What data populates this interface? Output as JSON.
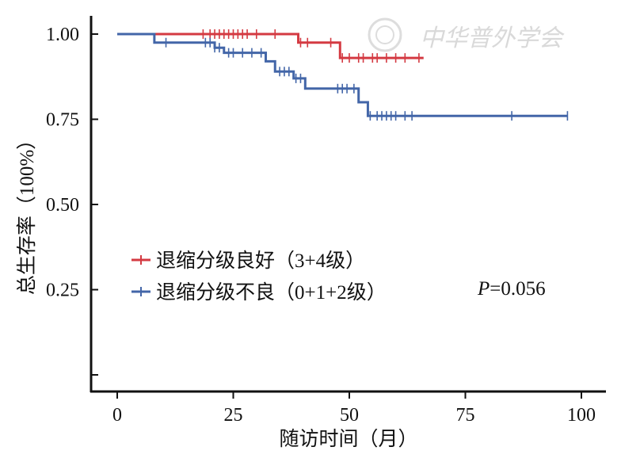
{
  "chart_data": {
    "type": "line",
    "step": true,
    "ylabel": "总生存率（100%）",
    "xlabel": "随访时间（月）",
    "xlim": [
      -5,
      105
    ],
    "ylim": [
      -0.06,
      1.06
    ],
    "xticks": [
      0,
      25,
      50,
      75,
      100
    ],
    "yticks": [
      0.25,
      0.5,
      0.75,
      1.0
    ],
    "ytick_labels": [
      "0.25",
      "0.50",
      "0.75",
      "1.00"
    ],
    "extra_ytick": 0.0,
    "legend_position": "center-left",
    "annotation": {
      "label": "P",
      "value": "=0.056"
    },
    "watermark": "中华普外学会",
    "series": [
      {
        "name": "退缩分级良好（3+4级）",
        "color": "#d43a42",
        "steps": [
          [
            0,
            1.0
          ],
          [
            39,
            0.975
          ],
          [
            48,
            0.93
          ],
          [
            66,
            0.93
          ]
        ],
        "censored": [
          [
            18.5,
            1.0
          ],
          [
            20,
            1.0
          ],
          [
            21,
            1.0
          ],
          [
            22,
            1.0
          ],
          [
            23,
            1.0
          ],
          [
            24,
            1.0
          ],
          [
            25,
            1.0
          ],
          [
            26,
            1.0
          ],
          [
            27,
            1.0
          ],
          [
            28,
            1.0
          ],
          [
            30,
            1.0
          ],
          [
            34,
            1.0
          ],
          [
            39.5,
            0.975
          ],
          [
            41,
            0.975
          ],
          [
            46,
            0.975
          ],
          [
            48.5,
            0.93
          ],
          [
            50,
            0.93
          ],
          [
            52,
            0.93
          ],
          [
            53,
            0.93
          ],
          [
            55,
            0.93
          ],
          [
            56,
            0.93
          ],
          [
            58,
            0.93
          ],
          [
            60,
            0.93
          ],
          [
            62,
            0.93
          ],
          [
            65,
            0.93
          ]
        ]
      },
      {
        "name": "退缩分级不良（0+1+2级）",
        "color": "#4366a8",
        "steps": [
          [
            0,
            1.0
          ],
          [
            8,
            0.975
          ],
          [
            21,
            0.96
          ],
          [
            23,
            0.945
          ],
          [
            32,
            0.92
          ],
          [
            34,
            0.89
          ],
          [
            38,
            0.87
          ],
          [
            40.5,
            0.84
          ],
          [
            52,
            0.8
          ],
          [
            54,
            0.76
          ],
          [
            97,
            0.76
          ]
        ],
        "censored": [
          [
            10.5,
            0.975
          ],
          [
            19,
            0.975
          ],
          [
            20,
            0.975
          ],
          [
            21,
            0.96
          ],
          [
            22,
            0.96
          ],
          [
            24,
            0.945
          ],
          [
            25,
            0.945
          ],
          [
            27,
            0.945
          ],
          [
            29,
            0.945
          ],
          [
            31,
            0.945
          ],
          [
            35,
            0.89
          ],
          [
            36,
            0.89
          ],
          [
            37,
            0.89
          ],
          [
            38.5,
            0.87
          ],
          [
            39.5,
            0.87
          ],
          [
            47.5,
            0.84
          ],
          [
            48.5,
            0.84
          ],
          [
            49.5,
            0.84
          ],
          [
            51,
            0.84
          ],
          [
            54.5,
            0.76
          ],
          [
            56,
            0.76
          ],
          [
            57,
            0.76
          ],
          [
            58,
            0.76
          ],
          [
            59,
            0.76
          ],
          [
            60,
            0.76
          ],
          [
            62,
            0.76
          ],
          [
            63.5,
            0.76
          ],
          [
            85,
            0.76
          ],
          [
            97,
            0.76
          ]
        ]
      }
    ]
  }
}
